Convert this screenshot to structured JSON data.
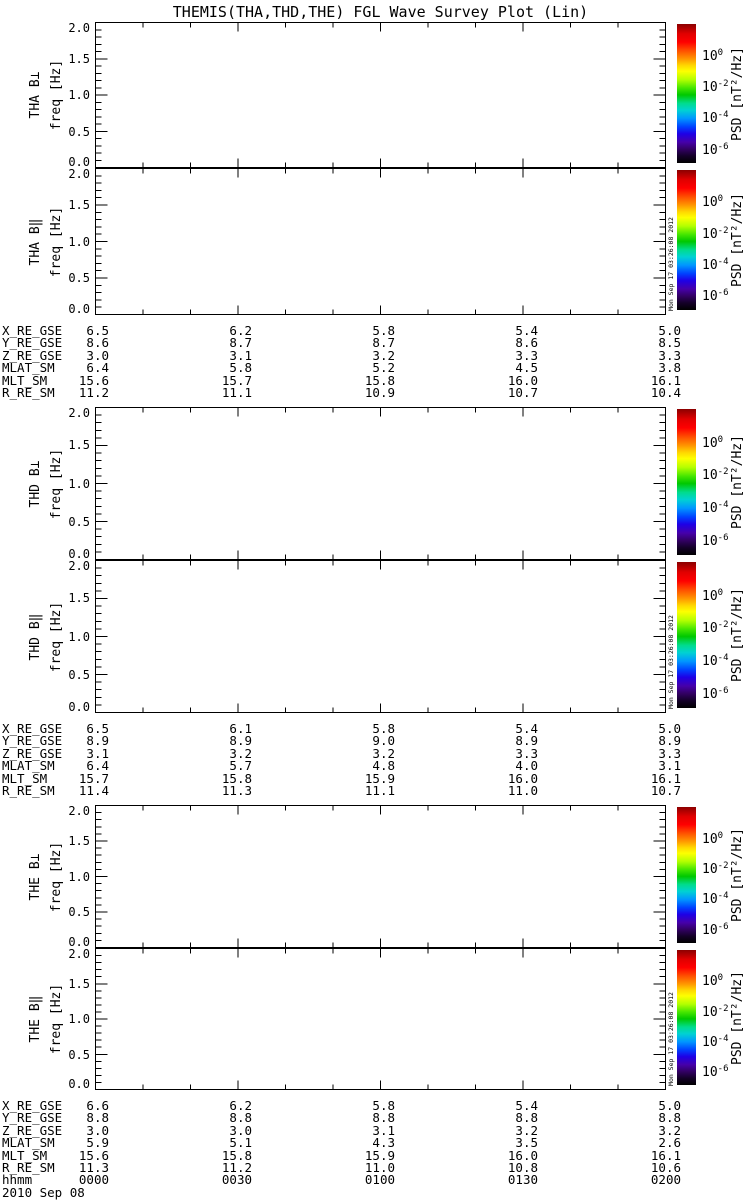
{
  "title": "THEMIS(THA,THD,THE) FGL Wave Survey Plot (Lin)",
  "timestamp_vertical": "Mon Sep 17 03:26:08 2012",
  "footer": {
    "date": "2010 Sep 08",
    "hhmm_label": "hhmm"
  },
  "chart_data": {
    "type": "heatmap",
    "description": "Six empty FGL wave-survey spectrogram panels (three probes, two magnetic components each); no spectral data is plotted inside the panels",
    "y_axis": {
      "label": "freq [Hz]",
      "ylim": [
        0,
        2
      ],
      "tick_labels": [
        "2.0",
        "1.5",
        "1.0",
        "0.5",
        "0.0"
      ],
      "minor_tick_step": 0.1
    },
    "x_axis": {
      "label": "hhmm",
      "tick_labels": [
        "0000",
        "0030",
        "0100",
        "0130",
        "0200"
      ],
      "range_minutes": 120,
      "minor_tick_minutes": 10,
      "date": "2010 Sep 08"
    },
    "colorbar": {
      "label": "PSD [nT²/Hz]",
      "tick_labels": [
        "10^0",
        "10^-2",
        "10^-4",
        "10^-6"
      ],
      "scale": "log",
      "colors_top_to_bottom": [
        "#8b0000",
        "#ff0000",
        "#ff9500",
        "#ffff00",
        "#46e600",
        "#00dc8c",
        "#00d2d2",
        "#0096ff",
        "#1e00e6",
        "#4600aa",
        "#000000"
      ]
    },
    "panels": [
      {
        "probe": "THA",
        "component": "B⊥",
        "label": "THA B⊥",
        "values": []
      },
      {
        "probe": "THA",
        "component": "B‖",
        "label": "THA B‖",
        "values": []
      },
      {
        "probe": "THD",
        "component": "B⊥",
        "label": "THD B⊥",
        "values": []
      },
      {
        "probe": "THD",
        "component": "B‖",
        "label": "THD B‖",
        "values": []
      },
      {
        "probe": "THE",
        "component": "B⊥",
        "label": "THE B⊥",
        "values": []
      },
      {
        "probe": "THE",
        "component": "B‖",
        "label": "THE B‖",
        "values": []
      }
    ],
    "ephemeris_tables": [
      {
        "probe": "THA",
        "rows": [
          {
            "label": "X_RE_GSE",
            "values": [
              "6.5",
              "6.2",
              "5.8",
              "5.4",
              "5.0"
            ]
          },
          {
            "label": "Y_RE_GSE",
            "values": [
              "8.6",
              "8.7",
              "8.7",
              "8.6",
              "8.5"
            ]
          },
          {
            "label": "Z_RE_GSE",
            "values": [
              "3.0",
              "3.1",
              "3.2",
              "3.3",
              "3.3"
            ]
          },
          {
            "label": "MLAT_SM",
            "values": [
              "6.4",
              "5.8",
              "5.2",
              "4.5",
              "3.8"
            ]
          },
          {
            "label": "MLT_SM",
            "values": [
              "15.6",
              "15.7",
              "15.8",
              "16.0",
              "16.1"
            ]
          },
          {
            "label": "R_RE_SM",
            "values": [
              "11.2",
              "11.1",
              "10.9",
              "10.7",
              "10.4"
            ]
          }
        ]
      },
      {
        "probe": "THD",
        "rows": [
          {
            "label": "X_RE_GSE",
            "values": [
              "6.5",
              "6.1",
              "5.8",
              "5.4",
              "5.0"
            ]
          },
          {
            "label": "Y_RE_GSE",
            "values": [
              "8.9",
              "8.9",
              "9.0",
              "8.9",
              "8.9"
            ]
          },
          {
            "label": "Z_RE_GSE",
            "values": [
              "3.1",
              "3.2",
              "3.2",
              "3.3",
              "3.3"
            ]
          },
          {
            "label": "MLAT_SM",
            "values": [
              "6.4",
              "5.7",
              "4.8",
              "4.0",
              "3.1"
            ]
          },
          {
            "label": "MLT_SM",
            "values": [
              "15.7",
              "15.8",
              "15.9",
              "16.0",
              "16.1"
            ]
          },
          {
            "label": "R_RE_SM",
            "values": [
              "11.4",
              "11.3",
              "11.1",
              "11.0",
              "10.7"
            ]
          }
        ]
      },
      {
        "probe": "THE",
        "rows": [
          {
            "label": "X_RE_GSE",
            "values": [
              "6.6",
              "6.2",
              "5.8",
              "5.4",
              "5.0"
            ]
          },
          {
            "label": "Y_RE_GSE",
            "values": [
              "8.8",
              "8.8",
              "8.8",
              "8.8",
              "8.8"
            ]
          },
          {
            "label": "Z_RE_GSE",
            "values": [
              "3.0",
              "3.0",
              "3.1",
              "3.2",
              "3.2"
            ]
          },
          {
            "label": "MLAT_SM",
            "values": [
              "5.9",
              "5.1",
              "4.3",
              "3.5",
              "2.6"
            ]
          },
          {
            "label": "MLT_SM",
            "values": [
              "15.6",
              "15.8",
              "15.9",
              "16.0",
              "16.1"
            ]
          },
          {
            "label": "R_RE_SM",
            "values": [
              "11.3",
              "11.2",
              "11.0",
              "10.8",
              "10.6"
            ]
          }
        ]
      }
    ],
    "hhmm_row": {
      "label": "hhmm",
      "values": [
        "0000",
        "0030",
        "0100",
        "0130",
        "0200"
      ]
    }
  }
}
